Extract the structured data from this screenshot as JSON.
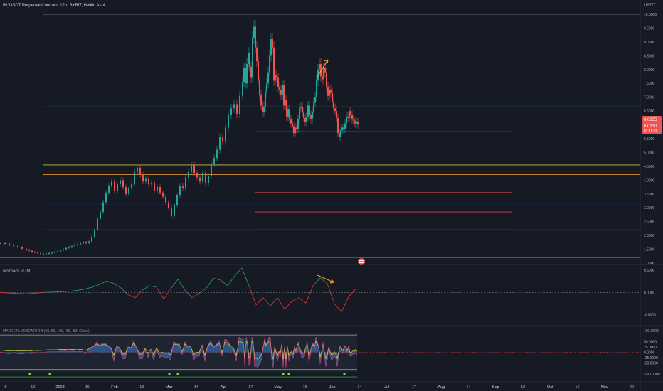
{
  "header": {
    "title": "INJUSDT Perpetual Contract, 12h, BYBIT, Heikin Ashi",
    "currency": "USDT"
  },
  "price_badges": {
    "last": "6.0235",
    "current": "6.0130",
    "countdown": "07:15:28"
  },
  "indicators": {
    "wolfpack_label": "wolfpack id (M)",
    "market_label": "MARKET LIQUIDATOR II (50, 50, 100, -60, -53, Close)"
  },
  "colors": {
    "background": "#161a25",
    "bull": "#26a69a",
    "bear": "#ef5350",
    "arrow": "#f0a030"
  },
  "chart_data": [
    {
      "type": "line",
      "panel": "price",
      "title": "INJUSDT Perpetual Contract, 12h, BYBIT, Heikin Ashi",
      "ylabel": "USDT",
      "ylim": [
        1.0,
        10.0
      ],
      "y_ticks": [
        "10.0000",
        "9.5000",
        "9.0000",
        "8.5000",
        "8.0000",
        "7.5000",
        "7.0000",
        "6.5000",
        "5.5000",
        "5.0000",
        "4.5000",
        "4.0000",
        "3.5000",
        "3.0000",
        "2.5000",
        "2.0000",
        "1.5000",
        "1.0000"
      ],
      "x_ticks": [
        "5",
        "19",
        "2023",
        "16",
        "Feb",
        "13",
        "Mar",
        "14",
        "Apr",
        "17",
        "May",
        "15",
        "Jun",
        "14",
        "Jul",
        "17",
        "Aug",
        "14",
        "Sep",
        "18",
        "Oct",
        "16",
        "Nov",
        "20"
      ],
      "series": [
        {
          "x": [
            0,
            6,
            12,
            18,
            24,
            30,
            36,
            40,
            44,
            48,
            52,
            56,
            60,
            64,
            68,
            72,
            76,
            80,
            84,
            88,
            92,
            96,
            100,
            104,
            108,
            112,
            116,
            120,
            124,
            128,
            132,
            136,
            140,
            144,
            148,
            152,
            156,
            160,
            164,
            168,
            172,
            176,
            180,
            184,
            188,
            192,
            196,
            200,
            204,
            208,
            212,
            216,
            220,
            224,
            228,
            232,
            236,
            240,
            244,
            248,
            252,
            256,
            260,
            264,
            268,
            272,
            276,
            280,
            284,
            288,
            292,
            296,
            300,
            304,
            308,
            312,
            316,
            320,
            324,
            328,
            332,
            336,
            340,
            342,
            344,
            346,
            348,
            350,
            352,
            354,
            356,
            358,
            360,
            362,
            364,
            366,
            368,
            370,
            372,
            374,
            376,
            378,
            380,
            382,
            384,
            386,
            388,
            390,
            392,
            394,
            396,
            398,
            400,
            402,
            404,
            406,
            408,
            410,
            412,
            414,
            416,
            418,
            420,
            422,
            424,
            426,
            428,
            430,
            432,
            434,
            436,
            438,
            440,
            442,
            444,
            446,
            448,
            450,
            452,
            454,
            456,
            458,
            460,
            462,
            464,
            466,
            468,
            470,
            472,
            474,
            476,
            478,
            480,
            482,
            484,
            486,
            488,
            490,
            492,
            494,
            496,
            498,
            500,
            502
          ],
          "y": [
            1.72,
            1.7,
            1.65,
            1.62,
            1.58,
            1.52,
            1.48,
            1.45,
            1.4,
            1.39,
            1.36,
            1.34,
            1.33,
            1.34,
            1.36,
            1.38,
            1.4,
            1.42,
            1.46,
            1.5,
            1.55,
            1.58,
            1.62,
            1.66,
            1.68,
            1.72,
            1.75,
            1.72,
            1.78,
            1.95,
            2.2,
            2.6,
            2.85,
            3.2,
            3.55,
            3.8,
            3.95,
            3.6,
            3.85,
            4.0,
            3.75,
            3.5,
            3.7,
            3.85,
            4.3,
            4.45,
            4.2,
            3.95,
            4.05,
            3.85,
            3.9,
            3.6,
            3.75,
            3.55,
            3.4,
            3.2,
            3.0,
            2.7,
            3.1,
            3.45,
            3.8,
            3.7,
            4.1,
            4.3,
            4.55,
            4.25,
            4.1,
            3.95,
            4.25,
            3.9,
            4.15,
            4.6,
            4.8,
            5.1,
            5.55,
            5.4,
            5.9,
            6.35,
            6.6,
            6.75,
            6.4,
            7.05,
            7.55,
            8.05,
            7.5,
            8.2,
            8.6,
            8.1,
            7.7,
            9.15,
            9.55,
            8.8,
            8.3,
            7.6,
            7.1,
            6.7,
            6.45,
            6.65,
            7.2,
            7.5,
            7.9,
            8.5,
            9.1,
            8.8,
            7.6,
            7.8,
            7.7,
            7.35,
            7.25,
            7.1,
            7.45,
            6.7,
            6.9,
            6.3,
            6.55,
            6.2,
            6.05,
            5.95,
            5.7,
            5.9,
            5.85,
            6.2,
            6.6,
            6.65,
            6.45,
            6.25,
            6.1,
            6.3,
            6.7,
            6.35,
            6.2,
            6.45,
            6.8,
            7.0,
            7.6,
            8.0,
            8.2,
            7.75,
            7.65,
            8.05,
            7.9,
            7.35,
            7.05,
            7.25,
            7.15,
            6.85,
            6.6,
            6.5,
            6.25,
            5.7,
            5.55,
            5.8,
            5.9,
            5.85,
            6.05,
            6.3,
            6.25,
            6.5,
            6.35,
            6.2,
            6.15,
            6.05,
            6.1,
            6.01
          ]
        }
      ]
    },
    {
      "type": "line",
      "panel": "wolfpack",
      "title": "wolfpack id (M)",
      "ylim": [
        -0.7,
        0.55
      ],
      "y_ticks": [
        "0.5000",
        "0.0000",
        "-0.5000"
      ],
      "series": [
        {
          "x": [
            0,
            20,
            40,
            60,
            80,
            100,
            110,
            120,
            130,
            140,
            150,
            160,
            170,
            180,
            190,
            200,
            210,
            220,
            230,
            240,
            250,
            260,
            270,
            280,
            290,
            300,
            310,
            320,
            330,
            340,
            350,
            360,
            370,
            380,
            390,
            400,
            410,
            420,
            430,
            440,
            450,
            460,
            470,
            480,
            490,
            500
          ],
          "y": [
            0.0,
            -0.02,
            -0.03,
            0.0,
            0.01,
            0.03,
            0.05,
            0.08,
            0.12,
            0.18,
            0.26,
            0.2,
            0.1,
            -0.05,
            -0.12,
            0.05,
            0.15,
            0.12,
            -0.15,
            0.08,
            0.3,
            0.05,
            -0.12,
            -0.02,
            0.1,
            0.32,
            0.28,
            0.15,
            0.38,
            0.55,
            0.15,
            -0.28,
            -0.12,
            -0.3,
            -0.12,
            -0.38,
            -0.2,
            -0.12,
            -0.24,
            0.15,
            0.33,
            0.2,
            -0.25,
            -0.44,
            -0.1,
            0.08
          ]
        }
      ]
    },
    {
      "type": "area",
      "panel": "market_liquidator",
      "title": "MARKET LIQUIDATOR II (50, 50, 100, -60, -53, Close)",
      "ylim": [
        -120,
        110
      ],
      "y_ticks": [
        "100.0000",
        "50.0000",
        "25.0000",
        "0.0000",
        "-25.0000",
        "-50.0000",
        "-100.0000"
      ],
      "levels": [
        -60,
        -53
      ]
    }
  ]
}
